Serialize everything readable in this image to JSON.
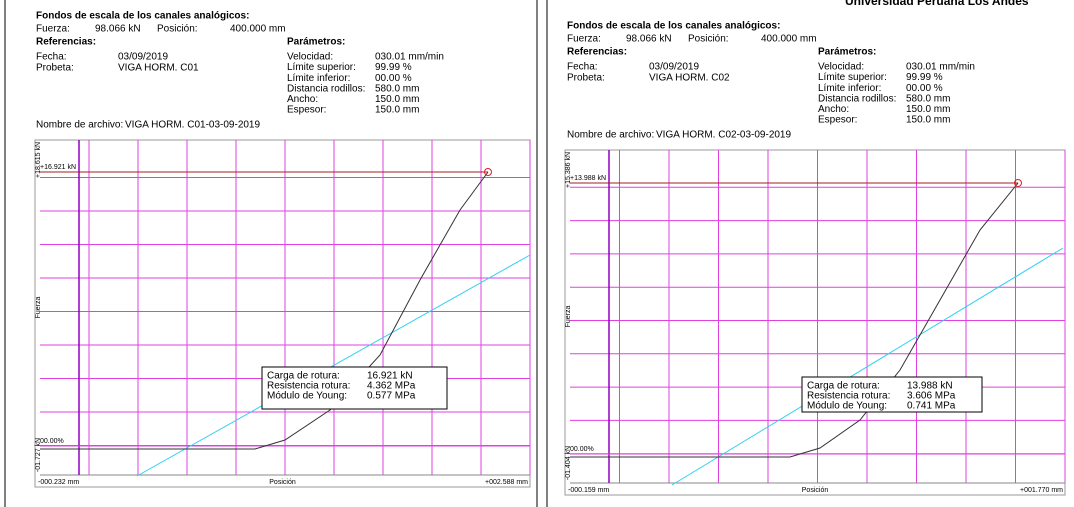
{
  "header_fragment": "Universidad Peruana Los Andes",
  "reports": [
    {
      "scale_title": "Fondos de escala de los canales analógicos:",
      "force_label": "Fuerza:",
      "force_value": "98.066 kN",
      "position_label": "Posición:",
      "position_value": "400.000 mm",
      "references_title": "Referencias:",
      "parameters_title": "Parámetros:",
      "references": [
        [
          "Fecha:",
          "03/09/2019"
        ],
        [
          "Probeta:",
          "VIGA HORM. C01"
        ]
      ],
      "parameters": [
        [
          "Velocidad:",
          "030.01 mm/min"
        ],
        [
          "Límite superior:",
          "99.99 %"
        ],
        [
          "Límite inferior:",
          "00.00 %"
        ],
        [
          "Distancia rodillos:",
          "580.0 mm"
        ],
        [
          "Ancho:",
          "150.0 mm"
        ],
        [
          "Espesor:",
          "150.0 mm"
        ]
      ],
      "file_label": "Nombre de archivo:",
      "file_name": "VIGA HORM. C01-03-09-2019",
      "plot": {
        "y_max_label": "+18.615 kN",
        "y_min_label": "-01.727 kN",
        "y_axis_label": "Fuerza",
        "peak_label": "+16.921 kN",
        "zero_label": "00.00%",
        "x_min_label": "-000.232 mm",
        "x_axis_label": "Posición",
        "x_max_label": "+002.588 mm",
        "results": [
          [
            "Carga de rotura:",
            "16.921 kN"
          ],
          [
            "Resistencia rotura:",
            "4.362 MPa"
          ],
          [
            "Módulo de Young:",
            "0.577 MPa"
          ]
        ]
      }
    },
    {
      "scale_title": "Fondos de escala de los canales analógicos:",
      "force_label": "Fuerza:",
      "force_value": "98.066 kN",
      "position_label": "Posición:",
      "position_value": "400.000 mm",
      "references_title": "Referencias:",
      "parameters_title": "Parámetros:",
      "references": [
        [
          "Fecha:",
          "03/09/2019"
        ],
        [
          "Probeta:",
          "VIGA HORM. C02"
        ]
      ],
      "parameters": [
        [
          "Velocidad:",
          "030.01 mm/min"
        ],
        [
          "Límite superior:",
          "99.99 %"
        ],
        [
          "Límite inferior:",
          "00.00 %"
        ],
        [
          "Distancia rodillos:",
          "580.0 mm"
        ],
        [
          "Ancho:",
          "150.0 mm"
        ],
        [
          "Espesor:",
          "150.0 mm"
        ]
      ],
      "file_label": "Nombre de archivo:",
      "file_name": "VIGA HORM. C02-03-09-2019",
      "plot": {
        "y_max_label": "+15.386 kN",
        "y_min_label": "-01.404 kN",
        "y_axis_label": "Fuerza",
        "peak_label": "+13.988 kN",
        "zero_label": "00.00%",
        "x_min_label": "-000.159 mm",
        "x_axis_label": "Posición",
        "x_max_label": "+001.770 mm",
        "results": [
          [
            "Carga de rotura:",
            "13.988 kN"
          ],
          [
            "Resistencia rotura:",
            "3.606 MPa"
          ],
          [
            "Módulo de Young:",
            "0.741 MPa"
          ]
        ]
      }
    }
  ]
}
